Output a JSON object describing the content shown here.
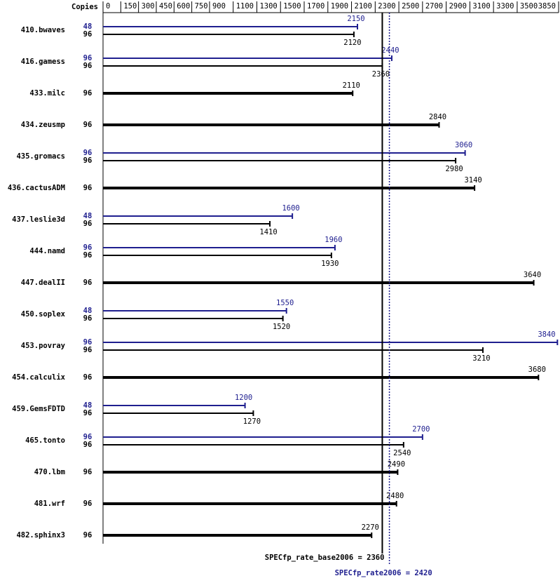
{
  "chart_data": {
    "type": "bar",
    "copies_header": "Copies",
    "xlim": [
      0,
      3850
    ],
    "xticks": [
      0,
      150,
      300,
      450,
      600,
      750,
      900,
      1100,
      1300,
      1500,
      1700,
      1900,
      2100,
      2300,
      2500,
      2700,
      2900,
      3100,
      3300,
      3500,
      3850
    ],
    "categories": [
      "410.bwaves",
      "416.gamess",
      "433.milc",
      "434.zeusmp",
      "435.gromacs",
      "436.cactusADM",
      "437.leslie3d",
      "444.namd",
      "447.dealII",
      "450.soplex",
      "453.povray",
      "454.calculix",
      "459.GemsFDTD",
      "465.tonto",
      "470.lbm",
      "481.wrf",
      "482.sphinx3"
    ],
    "series": [
      {
        "color": "#1f1f8f",
        "copies": [
          48,
          96,
          null,
          null,
          96,
          null,
          48,
          96,
          null,
          48,
          96,
          null,
          48,
          96,
          null,
          null,
          null
        ],
        "values": [
          2150,
          2440,
          null,
          null,
          3060,
          null,
          1600,
          1960,
          null,
          1550,
          3840,
          null,
          1200,
          2700,
          null,
          null,
          null
        ]
      },
      {
        "color": "#000000",
        "copies": [
          96,
          96,
          96,
          96,
          96,
          96,
          96,
          96,
          96,
          96,
          96,
          96,
          96,
          96,
          96,
          96,
          96
        ],
        "values": [
          2120,
          2360,
          2110,
          2840,
          2980,
          3140,
          1410,
          1930,
          3640,
          1520,
          3210,
          3680,
          1270,
          2540,
          2490,
          2480,
          2270
        ]
      }
    ],
    "reference_lines": [
      {
        "label": "SPECfp_rate_base2006 = 2360",
        "value": 2360,
        "color": "#000000",
        "style": "solid"
      },
      {
        "label": "SPECfp_rate2006 = 2420",
        "value": 2420,
        "color": "#1f1f8f",
        "style": "dotted"
      }
    ]
  }
}
